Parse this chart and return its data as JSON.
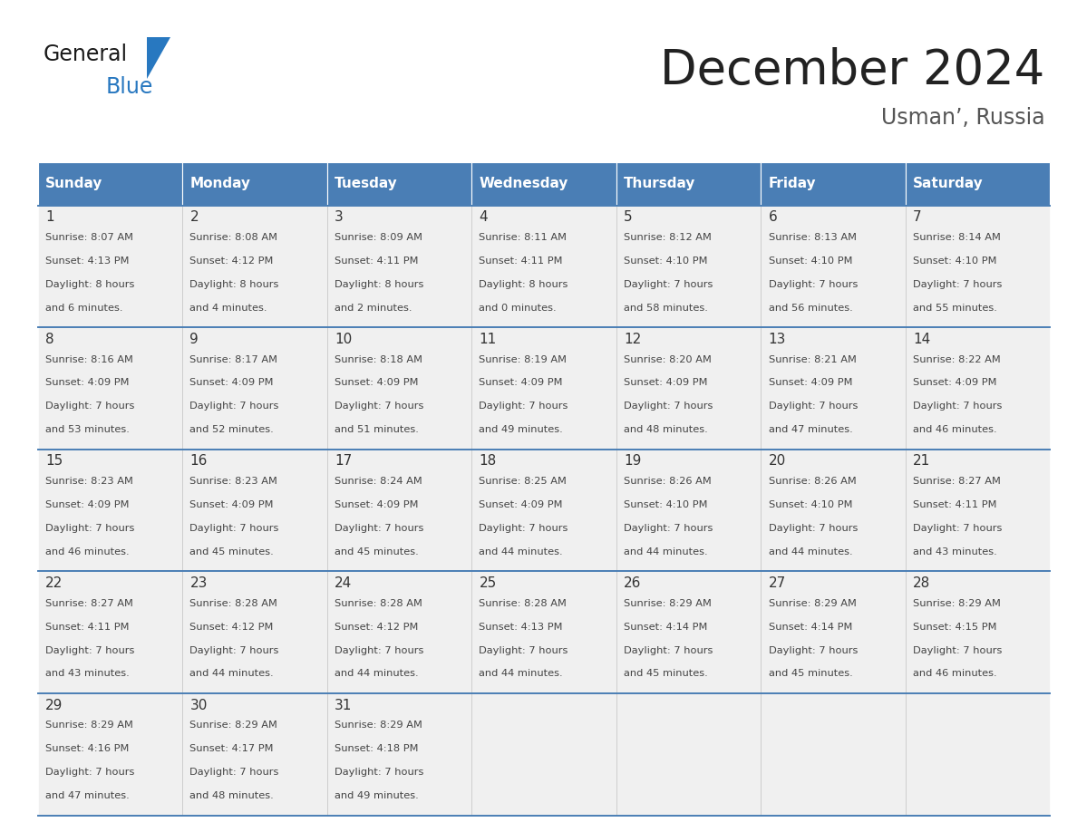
{
  "title": "December 2024",
  "subtitle": "Usman’, Russia",
  "header_color": "#4a7eb5",
  "header_text_color": "#ffffff",
  "cell_bg_color": "#f0f0f0",
  "day_names": [
    "Sunday",
    "Monday",
    "Tuesday",
    "Wednesday",
    "Thursday",
    "Friday",
    "Saturday"
  ],
  "weeks": [
    [
      {
        "day": 1,
        "sunrise": "8:07 AM",
        "sunset": "4:13 PM",
        "daylight_hours": 8,
        "daylight_minutes": 6
      },
      {
        "day": 2,
        "sunrise": "8:08 AM",
        "sunset": "4:12 PM",
        "daylight_hours": 8,
        "daylight_minutes": 4
      },
      {
        "day": 3,
        "sunrise": "8:09 AM",
        "sunset": "4:11 PM",
        "daylight_hours": 8,
        "daylight_minutes": 2
      },
      {
        "day": 4,
        "sunrise": "8:11 AM",
        "sunset": "4:11 PM",
        "daylight_hours": 8,
        "daylight_minutes": 0
      },
      {
        "day": 5,
        "sunrise": "8:12 AM",
        "sunset": "4:10 PM",
        "daylight_hours": 7,
        "daylight_minutes": 58
      },
      {
        "day": 6,
        "sunrise": "8:13 AM",
        "sunset": "4:10 PM",
        "daylight_hours": 7,
        "daylight_minutes": 56
      },
      {
        "day": 7,
        "sunrise": "8:14 AM",
        "sunset": "4:10 PM",
        "daylight_hours": 7,
        "daylight_minutes": 55
      }
    ],
    [
      {
        "day": 8,
        "sunrise": "8:16 AM",
        "sunset": "4:09 PM",
        "daylight_hours": 7,
        "daylight_minutes": 53
      },
      {
        "day": 9,
        "sunrise": "8:17 AM",
        "sunset": "4:09 PM",
        "daylight_hours": 7,
        "daylight_minutes": 52
      },
      {
        "day": 10,
        "sunrise": "8:18 AM",
        "sunset": "4:09 PM",
        "daylight_hours": 7,
        "daylight_minutes": 51
      },
      {
        "day": 11,
        "sunrise": "8:19 AM",
        "sunset": "4:09 PM",
        "daylight_hours": 7,
        "daylight_minutes": 49
      },
      {
        "day": 12,
        "sunrise": "8:20 AM",
        "sunset": "4:09 PM",
        "daylight_hours": 7,
        "daylight_minutes": 48
      },
      {
        "day": 13,
        "sunrise": "8:21 AM",
        "sunset": "4:09 PM",
        "daylight_hours": 7,
        "daylight_minutes": 47
      },
      {
        "day": 14,
        "sunrise": "8:22 AM",
        "sunset": "4:09 PM",
        "daylight_hours": 7,
        "daylight_minutes": 46
      }
    ],
    [
      {
        "day": 15,
        "sunrise": "8:23 AM",
        "sunset": "4:09 PM",
        "daylight_hours": 7,
        "daylight_minutes": 46
      },
      {
        "day": 16,
        "sunrise": "8:23 AM",
        "sunset": "4:09 PM",
        "daylight_hours": 7,
        "daylight_minutes": 45
      },
      {
        "day": 17,
        "sunrise": "8:24 AM",
        "sunset": "4:09 PM",
        "daylight_hours": 7,
        "daylight_minutes": 45
      },
      {
        "day": 18,
        "sunrise": "8:25 AM",
        "sunset": "4:09 PM",
        "daylight_hours": 7,
        "daylight_minutes": 44
      },
      {
        "day": 19,
        "sunrise": "8:26 AM",
        "sunset": "4:10 PM",
        "daylight_hours": 7,
        "daylight_minutes": 44
      },
      {
        "day": 20,
        "sunrise": "8:26 AM",
        "sunset": "4:10 PM",
        "daylight_hours": 7,
        "daylight_minutes": 44
      },
      {
        "day": 21,
        "sunrise": "8:27 AM",
        "sunset": "4:11 PM",
        "daylight_hours": 7,
        "daylight_minutes": 43
      }
    ],
    [
      {
        "day": 22,
        "sunrise": "8:27 AM",
        "sunset": "4:11 PM",
        "daylight_hours": 7,
        "daylight_minutes": 43
      },
      {
        "day": 23,
        "sunrise": "8:28 AM",
        "sunset": "4:12 PM",
        "daylight_hours": 7,
        "daylight_minutes": 44
      },
      {
        "day": 24,
        "sunrise": "8:28 AM",
        "sunset": "4:12 PM",
        "daylight_hours": 7,
        "daylight_minutes": 44
      },
      {
        "day": 25,
        "sunrise": "8:28 AM",
        "sunset": "4:13 PM",
        "daylight_hours": 7,
        "daylight_minutes": 44
      },
      {
        "day": 26,
        "sunrise": "8:29 AM",
        "sunset": "4:14 PM",
        "daylight_hours": 7,
        "daylight_minutes": 45
      },
      {
        "day": 27,
        "sunrise": "8:29 AM",
        "sunset": "4:14 PM",
        "daylight_hours": 7,
        "daylight_minutes": 45
      },
      {
        "day": 28,
        "sunrise": "8:29 AM",
        "sunset": "4:15 PM",
        "daylight_hours": 7,
        "daylight_minutes": 46
      }
    ],
    [
      {
        "day": 29,
        "sunrise": "8:29 AM",
        "sunset": "4:16 PM",
        "daylight_hours": 7,
        "daylight_minutes": 47
      },
      {
        "day": 30,
        "sunrise": "8:29 AM",
        "sunset": "4:17 PM",
        "daylight_hours": 7,
        "daylight_minutes": 48
      },
      {
        "day": 31,
        "sunrise": "8:29 AM",
        "sunset": "4:18 PM",
        "daylight_hours": 7,
        "daylight_minutes": 49
      },
      null,
      null,
      null,
      null
    ]
  ],
  "background_color": "#ffffff",
  "grid_line_color": "#4a7eb5",
  "cell_text_color": "#444444",
  "day_number_color": "#333333",
  "title_color": "#222222",
  "subtitle_color": "#555555"
}
